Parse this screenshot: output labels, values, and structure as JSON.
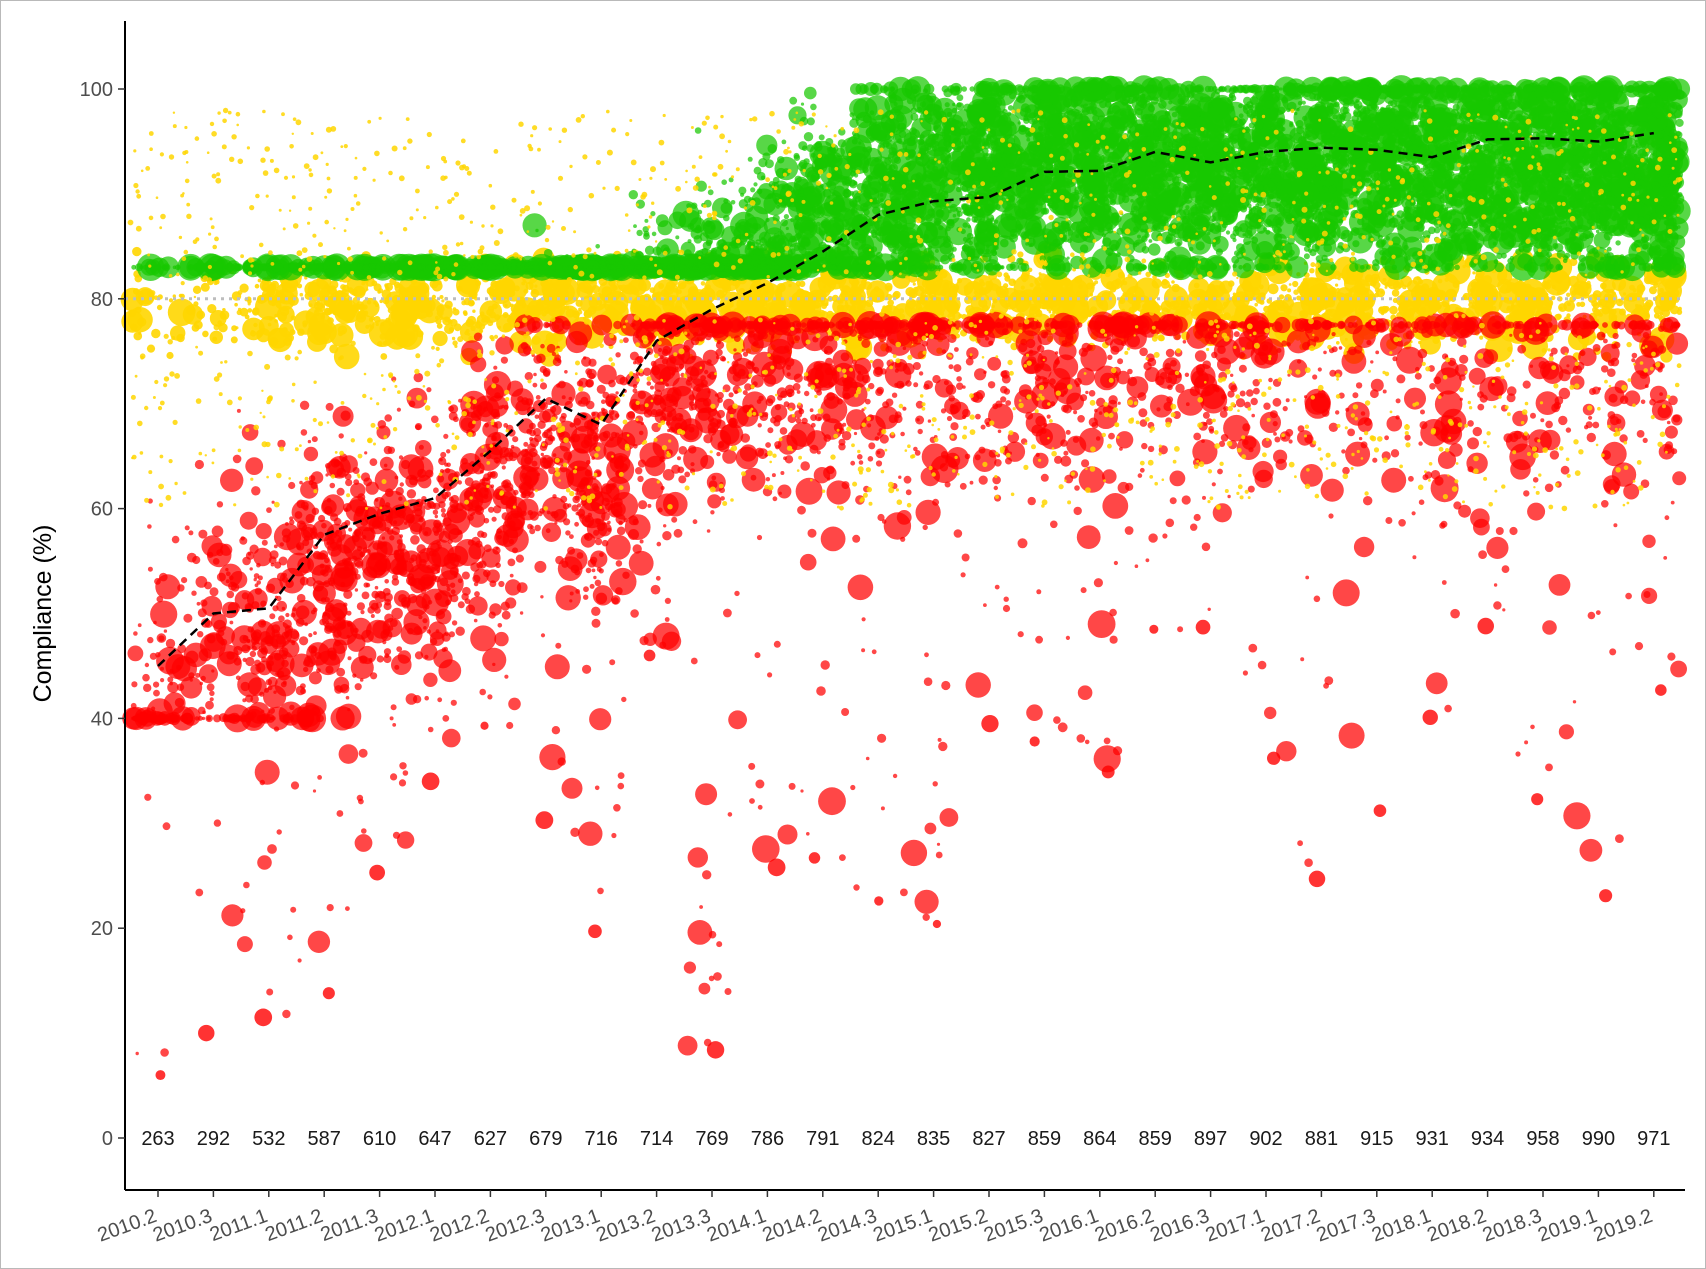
{
  "chart_data": {
    "type": "scatter",
    "ylabel": "Compliance (%)",
    "xlabel": "",
    "ylim": [
      -6,
      106
    ],
    "yticks": [
      0,
      20,
      40,
      60,
      80,
      100
    ],
    "threshold_line": 80,
    "colors": {
      "above": "#18c800",
      "near": "#ffd600",
      "below": "#ff0000",
      "trend": "#000000",
      "threshold": "#bdbdbd",
      "axis": "#000000"
    },
    "quarters": [
      "2010.2",
      "2010.3",
      "2011.1",
      "2011.2",
      "2011.3",
      "2012.1",
      "2012.2",
      "2012.3",
      "2013.1",
      "2013.2",
      "2013.3",
      "2014.1",
      "2014.2",
      "2014.3",
      "2015.1",
      "2015.2",
      "2015.3",
      "2016.1",
      "2016.2",
      "2016.3",
      "2017.1",
      "2017.2",
      "2017.3",
      "2018.1",
      "2018.2",
      "2018.3",
      "2019.1",
      "2019.2"
    ],
    "counts": [
      263,
      292,
      532,
      587,
      610,
      647,
      627,
      679,
      716,
      714,
      769,
      786,
      791,
      824,
      835,
      827,
      859,
      864,
      859,
      897,
      902,
      881,
      915,
      931,
      934,
      958,
      990,
      971
    ],
    "trend": [
      45,
      50,
      50.5,
      57.5,
      59.5,
      61,
      65.5,
      70.5,
      68,
      76,
      79,
      81.5,
      84.5,
      88,
      89.3,
      89.7,
      92.1,
      92.2,
      94,
      93,
      94,
      94.4,
      94.2,
      93.5,
      95.2,
      95.3,
      95,
      95.8
    ],
    "spread": {
      "top": [
        99.5,
        98.8,
        100,
        100,
        100,
        100,
        100,
        100,
        100,
        100,
        100,
        100,
        100,
        100,
        100,
        100,
        100,
        100,
        100,
        100,
        100,
        100,
        100,
        100,
        100,
        100,
        100,
        100
      ],
      "bottom": [
        6,
        10,
        11.5,
        13.8,
        25.3,
        34,
        39.3,
        30.3,
        19.7,
        46,
        8.4,
        25.8,
        26.7,
        22.6,
        20.4,
        39.5,
        37.8,
        34.9,
        48.5,
        48.7,
        36.2,
        24.7,
        31.2,
        40.1,
        48.8,
        32.3,
        23.1,
        42.7
      ],
      "green_share": [
        0.12,
        0.15,
        0.18,
        0.22,
        0.25,
        0.28,
        0.3,
        0.34,
        0.38,
        0.42,
        0.5,
        0.55,
        0.58,
        0.62,
        0.65,
        0.66,
        0.68,
        0.7,
        0.72,
        0.72,
        0.73,
        0.74,
        0.74,
        0.74,
        0.76,
        0.76,
        0.76,
        0.77
      ],
      "red_share": [
        0.7,
        0.66,
        0.64,
        0.6,
        0.58,
        0.55,
        0.52,
        0.48,
        0.45,
        0.42,
        0.35,
        0.3,
        0.27,
        0.24,
        0.21,
        0.2,
        0.18,
        0.17,
        0.15,
        0.15,
        0.14,
        0.13,
        0.13,
        0.13,
        0.12,
        0.12,
        0.12,
        0.11
      ]
    }
  }
}
